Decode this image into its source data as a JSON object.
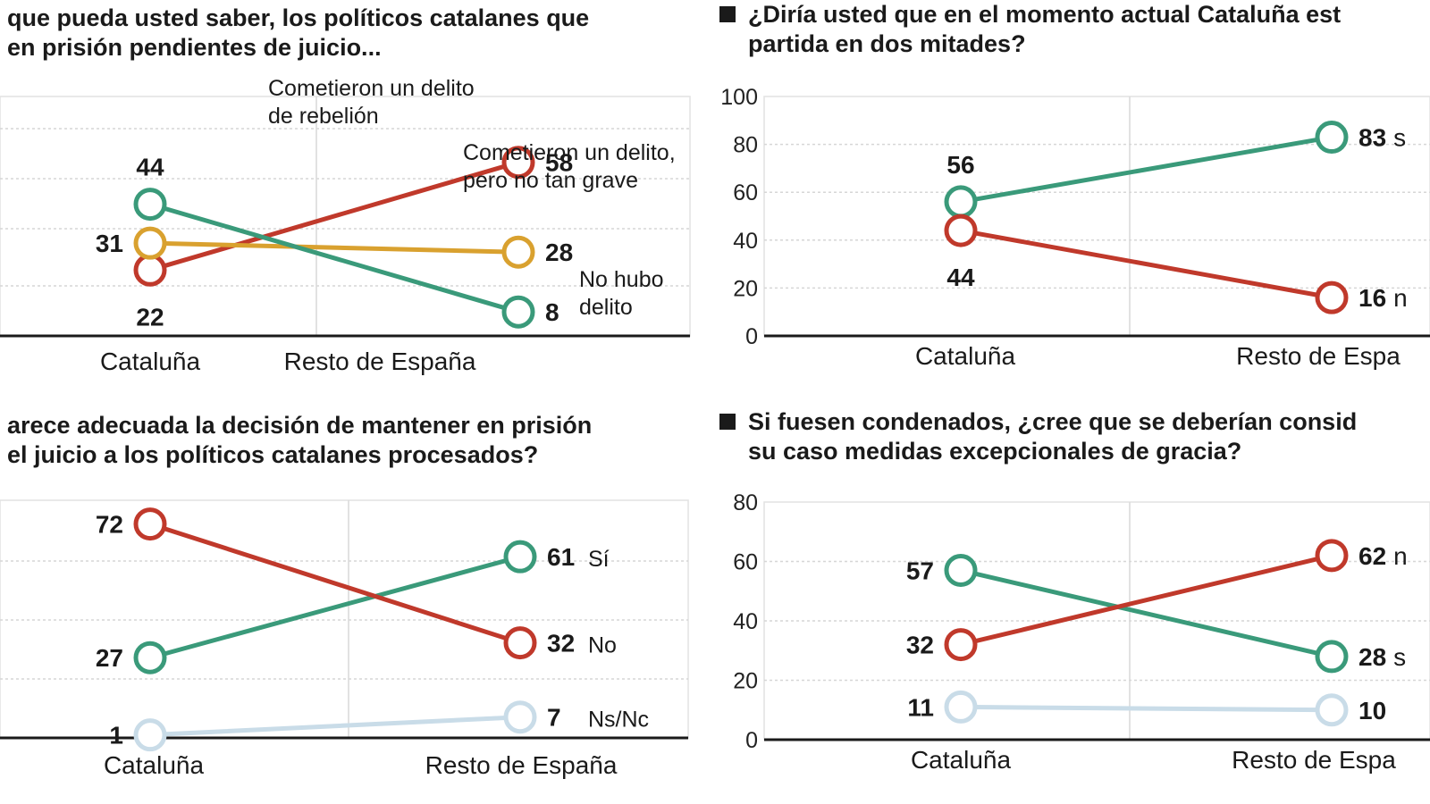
{
  "chart_data": [
    {
      "type": "line",
      "title": "que pueda usted saber, los políticos catalanes que\nen prisión pendientes de juicio...",
      "categories": [
        "Cataluña",
        "Resto de España"
      ],
      "series": [
        {
          "name": "Cometieron un delito\nde rebelión",
          "color": "#c0392b",
          "values": [
            22,
            58
          ]
        },
        {
          "name": "Cometieron un delito,\npero no tan grave",
          "color": "#d9a12f",
          "values": [
            31,
            28
          ]
        },
        {
          "name": "No hubo\ndelito",
          "color": "#3a9a7a",
          "values": [
            44,
            8
          ]
        }
      ],
      "ylim": [
        0,
        80
      ],
      "y_ticks_shown": false,
      "grid": true
    },
    {
      "type": "line",
      "title": "¿Diría usted que en el momento actual Cataluña est\npartida en dos mitades?",
      "title_marker": true,
      "categories": [
        "Cataluña",
        "Resto de Espa"
      ],
      "series": [
        {
          "name": "",
          "value_suffix": "s",
          "color": "#3a9a7a",
          "values": [
            56,
            83
          ]
        },
        {
          "name": "",
          "value_suffix": "n",
          "color": "#c0392b",
          "values": [
            44,
            16
          ]
        }
      ],
      "ylim": [
        0,
        100
      ],
      "y_ticks": [
        0,
        20,
        40,
        60,
        80,
        100
      ],
      "grid": true
    },
    {
      "type": "line",
      "title": "arece adecuada la decisión de mantener en prisión\nel juicio a los políticos catalanes procesados?",
      "categories": [
        "Cataluña",
        "Resto de España"
      ],
      "series": [
        {
          "name": "Sí",
          "color": "#3a9a7a",
          "values": [
            27,
            61
          ]
        },
        {
          "name": "No",
          "color": "#c0392b",
          "values": [
            72,
            32
          ]
        },
        {
          "name": "Ns/Nc",
          "color": "#c9dce8",
          "values": [
            1,
            7
          ]
        }
      ],
      "ylim": [
        0,
        80
      ],
      "y_ticks_shown": false,
      "grid": true
    },
    {
      "type": "line",
      "title": "Si fuesen condenados, ¿cree que se deberían consid\nsu caso medidas excepcionales de gracia?",
      "title_marker": true,
      "categories": [
        "Cataluña",
        "Resto de Espa"
      ],
      "series": [
        {
          "name": "",
          "value_suffix": "s",
          "color": "#3a9a7a",
          "values": [
            57,
            28
          ]
        },
        {
          "name": "",
          "value_suffix": "n",
          "color": "#c0392b",
          "values": [
            32,
            62
          ]
        },
        {
          "name": "",
          "color": "#c9dce8",
          "values": [
            11,
            10
          ]
        }
      ],
      "ylim": [
        0,
        80
      ],
      "y_ticks": [
        0,
        20,
        40,
        60,
        80
      ],
      "grid": true
    }
  ]
}
